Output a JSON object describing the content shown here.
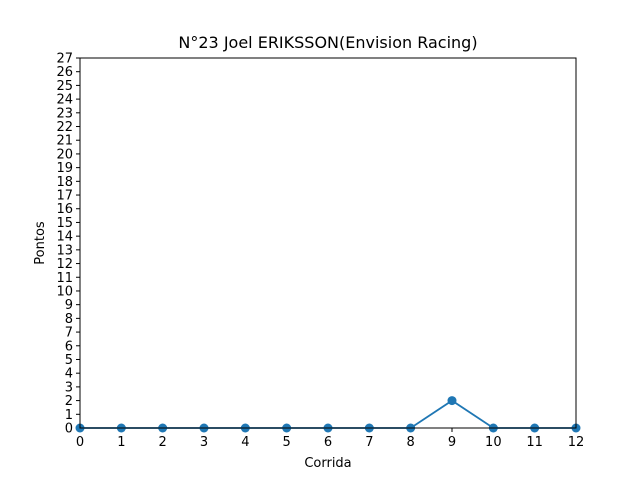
{
  "chart_data": {
    "type": "line",
    "title": "N°23 Joel ERIKSSON(Envision Racing)",
    "xlabel": "Corrida",
    "ylabel": "Pontos",
    "x": [
      0,
      1,
      2,
      3,
      4,
      5,
      6,
      7,
      8,
      9,
      10,
      11,
      12
    ],
    "series": [
      {
        "values": [
          0,
          0,
          0,
          0,
          0,
          0,
          0,
          0,
          0,
          2,
          0,
          0,
          0
        ]
      }
    ],
    "xlim": [
      0,
      12
    ],
    "ylim": [
      0,
      27
    ],
    "xticks": [
      0,
      1,
      2,
      3,
      4,
      5,
      6,
      7,
      8,
      9,
      10,
      11,
      12
    ],
    "yticks": [
      0,
      1,
      2,
      3,
      4,
      5,
      6,
      7,
      8,
      9,
      10,
      11,
      12,
      13,
      14,
      15,
      16,
      17,
      18,
      19,
      20,
      21,
      22,
      23,
      24,
      25,
      26,
      27
    ],
    "grid": false,
    "line_color": "#1f77b4"
  }
}
